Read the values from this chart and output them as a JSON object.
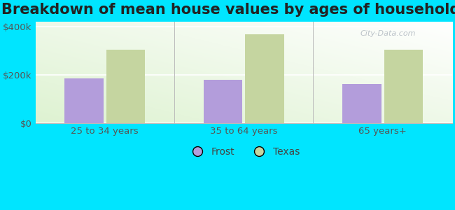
{
  "title": "Breakdown of mean house values by ages of householders",
  "categories": [
    "25 to 34 years",
    "35 to 64 years",
    "65 years+"
  ],
  "frost_values": [
    185000,
    180000,
    162000
  ],
  "texas_values": [
    305000,
    368000,
    305000
  ],
  "frost_color": "#b39ddb",
  "texas_color": "#c5d5a0",
  "ylim": [
    0,
    420000
  ],
  "yticks": [
    0,
    200000,
    400000
  ],
  "ytick_labels": [
    "$0",
    "$200k",
    "$400k"
  ],
  "background_color": "#00e5ff",
  "bar_width": 0.28,
  "legend_labels": [
    "Frost",
    "Texas"
  ],
  "title_fontsize": 15,
  "tick_fontsize": 9.5,
  "legend_fontsize": 10
}
